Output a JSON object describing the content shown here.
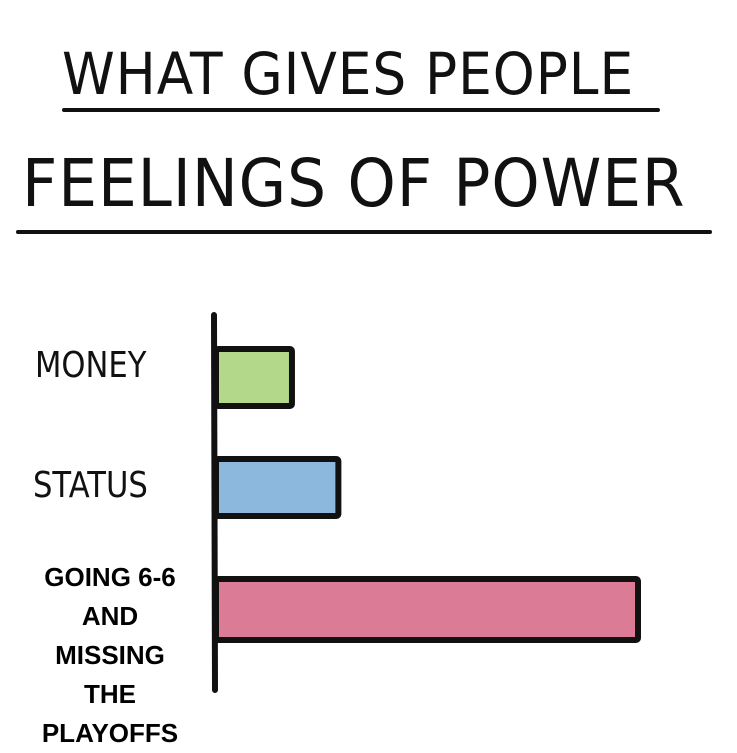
{
  "chart_data": {
    "type": "bar",
    "orientation": "horizontal",
    "title_lines": [
      "WHAT GIVES PEOPLE",
      "FEELINGS OF POWER"
    ],
    "categories": [
      "MONEY",
      "STATUS",
      "GOING 6-6 AND MISSING THE PLAYOFFS"
    ],
    "category_lines": [
      [
        "MONEY"
      ],
      [
        "STATUS"
      ],
      [
        "GOING 6-6",
        "AND",
        "MISSING",
        "THE",
        "PLAYOFFS"
      ]
    ],
    "values": [
      18,
      29,
      100
    ],
    "colors": [
      "#b3d88a",
      "#8cb8de",
      "#db7b96"
    ],
    "xlim": [
      0,
      100
    ],
    "grid": false,
    "legend": "none",
    "axis_ticks": false
  }
}
